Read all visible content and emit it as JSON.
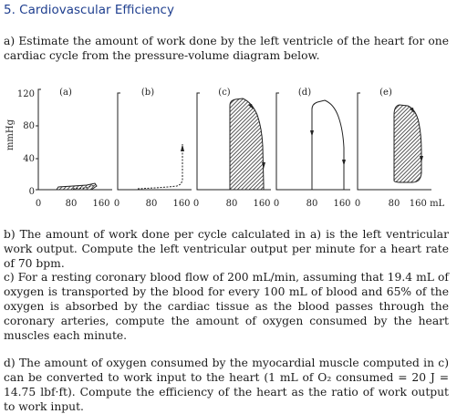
{
  "heading": "5. Cardiovascular Efficiency",
  "q_a": "a) Estimate the amount of work done by the left ventricle of the heart for one cardiac cycle from the pressure-volume diagram below.",
  "q_b": "b) The amount of work done per cycle calculated in a) is the left ventricular work output. Compute the left ventricular output per minute for a heart rate of 70 bpm.",
  "q_c": "c) For a resting coronary blood flow of 200 mL/min, assuming that 19.4 mL of oxygen is transported by the blood for every 100 mL of blood and 65% of the oxygen is absorbed by the cardiac tissue as the blood passes through the coronary arteries, compute the amount of oxygen consumed by the heart muscles each minute.",
  "q_d": "d) The amount of oxygen consumed by the myocardial muscle computed in c) can be converted to work input to the heart (1 mL of O₂ consumed = 20 J = 14.75 lbf·ft). Compute the efficiency of the heart as the ratio of work output to work input.",
  "diagram": {
    "y_axis_label": "mmHg",
    "y_ticks": [
      "120",
      "80",
      "40",
      "0"
    ],
    "x_tick_first": "0",
    "panels": [
      {
        "label": "(a)",
        "ticks": [
          "80",
          "160"
        ]
      },
      {
        "label": "(b)",
        "ticks": [
          "80",
          "160"
        ]
      },
      {
        "label": "(c)",
        "ticks": [
          "80",
          "160"
        ]
      },
      {
        "label": "(d)",
        "ticks": [
          "80",
          "160"
        ]
      },
      {
        "label": "(e)",
        "ticks": [
          "80",
          "160 mL"
        ]
      }
    ],
    "zero_labels": [
      "0",
      "0",
      "0",
      "0"
    ],
    "colors": {
      "ink": "#1a1a1a",
      "heading": "#1f3f8f"
    }
  }
}
